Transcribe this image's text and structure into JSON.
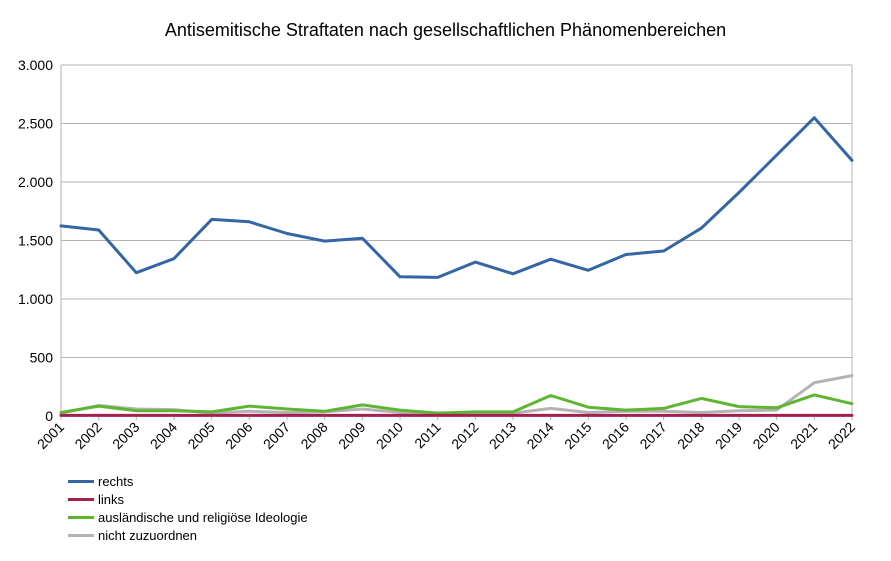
{
  "chart_data": {
    "type": "line",
    "title": "Antisemitische Straftaten nach gesellschaftlichen Phänomenbereichen",
    "xlabel": "",
    "ylabel": "",
    "ylim": [
      0,
      3000
    ],
    "yticks": [
      0,
      500,
      1000,
      1500,
      2000,
      2500,
      3000
    ],
    "ytick_labels": [
      "0",
      "500",
      "1.000",
      "1.500",
      "2.000",
      "2.500",
      "3.000"
    ],
    "grid": "horizontal",
    "legend_position": "bottom-left",
    "categories": [
      "2001",
      "2002",
      "2003",
      "2004",
      "2005",
      "2006",
      "2007",
      "2008",
      "2009",
      "2010",
      "2011",
      "2012",
      "2013",
      "2014",
      "2015",
      "2016",
      "2017",
      "2018",
      "2019",
      "2020",
      "2021",
      "2022"
    ],
    "series": [
      {
        "name": "rechts",
        "color": "#3465a4",
        "values": [
          1625,
          1590,
          1225,
          1345,
          1680,
          1660,
          1560,
          1495,
          1520,
          1190,
          1185,
          1315,
          1215,
          1340,
          1245,
          1380,
          1410,
          1605,
          1910,
          2230,
          2550,
          2185
        ]
      },
      {
        "name": "links",
        "color": "#a4204c",
        "values": [
          5,
          5,
          5,
          5,
          5,
          5,
          5,
          5,
          5,
          5,
          5,
          5,
          5,
          5,
          5,
          5,
          5,
          5,
          5,
          5,
          5,
          5
        ]
      },
      {
        "name": "ausländische und religiöse Ideologie",
        "color": "#5fb531",
        "values": [
          30,
          85,
          45,
          45,
          35,
          85,
          60,
          40,
          95,
          50,
          25,
          35,
          35,
          175,
          75,
          50,
          65,
          150,
          80,
          70,
          180,
          105
        ]
      },
      {
        "name": "nicht zuzuordnen",
        "color": "#b3b3b3",
        "values": [
          25,
          90,
          60,
          55,
          25,
          40,
          30,
          35,
          60,
          30,
          25,
          20,
          25,
          65,
          30,
          40,
          40,
          30,
          45,
          50,
          285,
          345
        ]
      }
    ]
  }
}
